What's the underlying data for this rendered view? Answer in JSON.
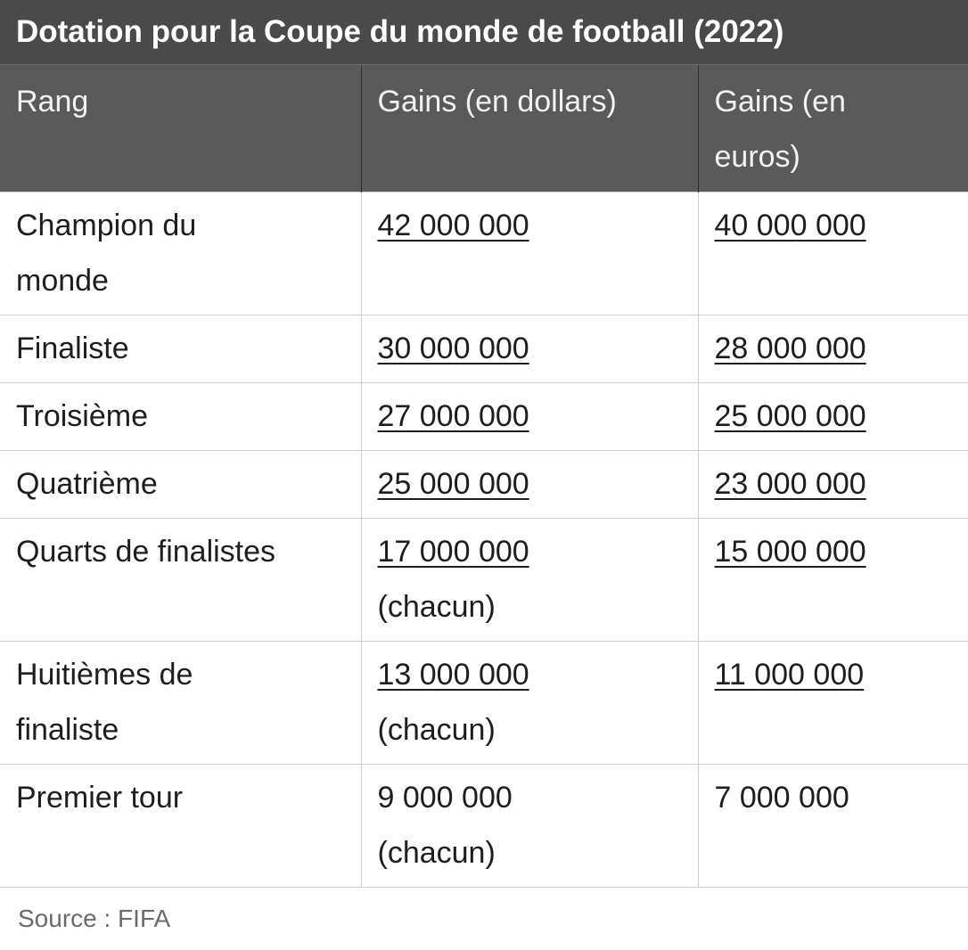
{
  "title": "Dotation pour la Coupe du monde de football (2022)",
  "headers": {
    "rank": "Rang",
    "usd_line1": "Gains (en dollars)",
    "eur_line1": "Gains (en",
    "eur_line2": "euros)"
  },
  "rows": [
    {
      "rank_1": "Champion du",
      "rank_2": "monde",
      "usd": "42 000 000",
      "usd_note": "",
      "eur": "40 000 000"
    },
    {
      "rank_1": "Finaliste",
      "rank_2": "",
      "usd": "30 000 000",
      "usd_note": "",
      "eur": "28 000 000"
    },
    {
      "rank_1": "Troisième",
      "rank_2": "",
      "usd": "27 000 000",
      "usd_note": "",
      "eur": "25 000 000"
    },
    {
      "rank_1": "Quatrième",
      "rank_2": "",
      "usd": "25 000 000",
      "usd_note": "",
      "eur": "23 000 000"
    },
    {
      "rank_1": "Quarts de finalistes",
      "rank_2": "",
      "usd": "17 000 000",
      "usd_note": "(chacun)",
      "eur": "15 000 000"
    },
    {
      "rank_1": "Huitièmes de",
      "rank_2": "finaliste",
      "usd": "13 000 000",
      "usd_note": "(chacun)",
      "eur": "11 000 000"
    },
    {
      "rank_1": "Premier tour",
      "rank_2": "",
      "usd": "9 000 000",
      "usd_note": "(chacun)",
      "eur": "7 000 000"
    }
  ],
  "source": "Source : FIFA"
}
